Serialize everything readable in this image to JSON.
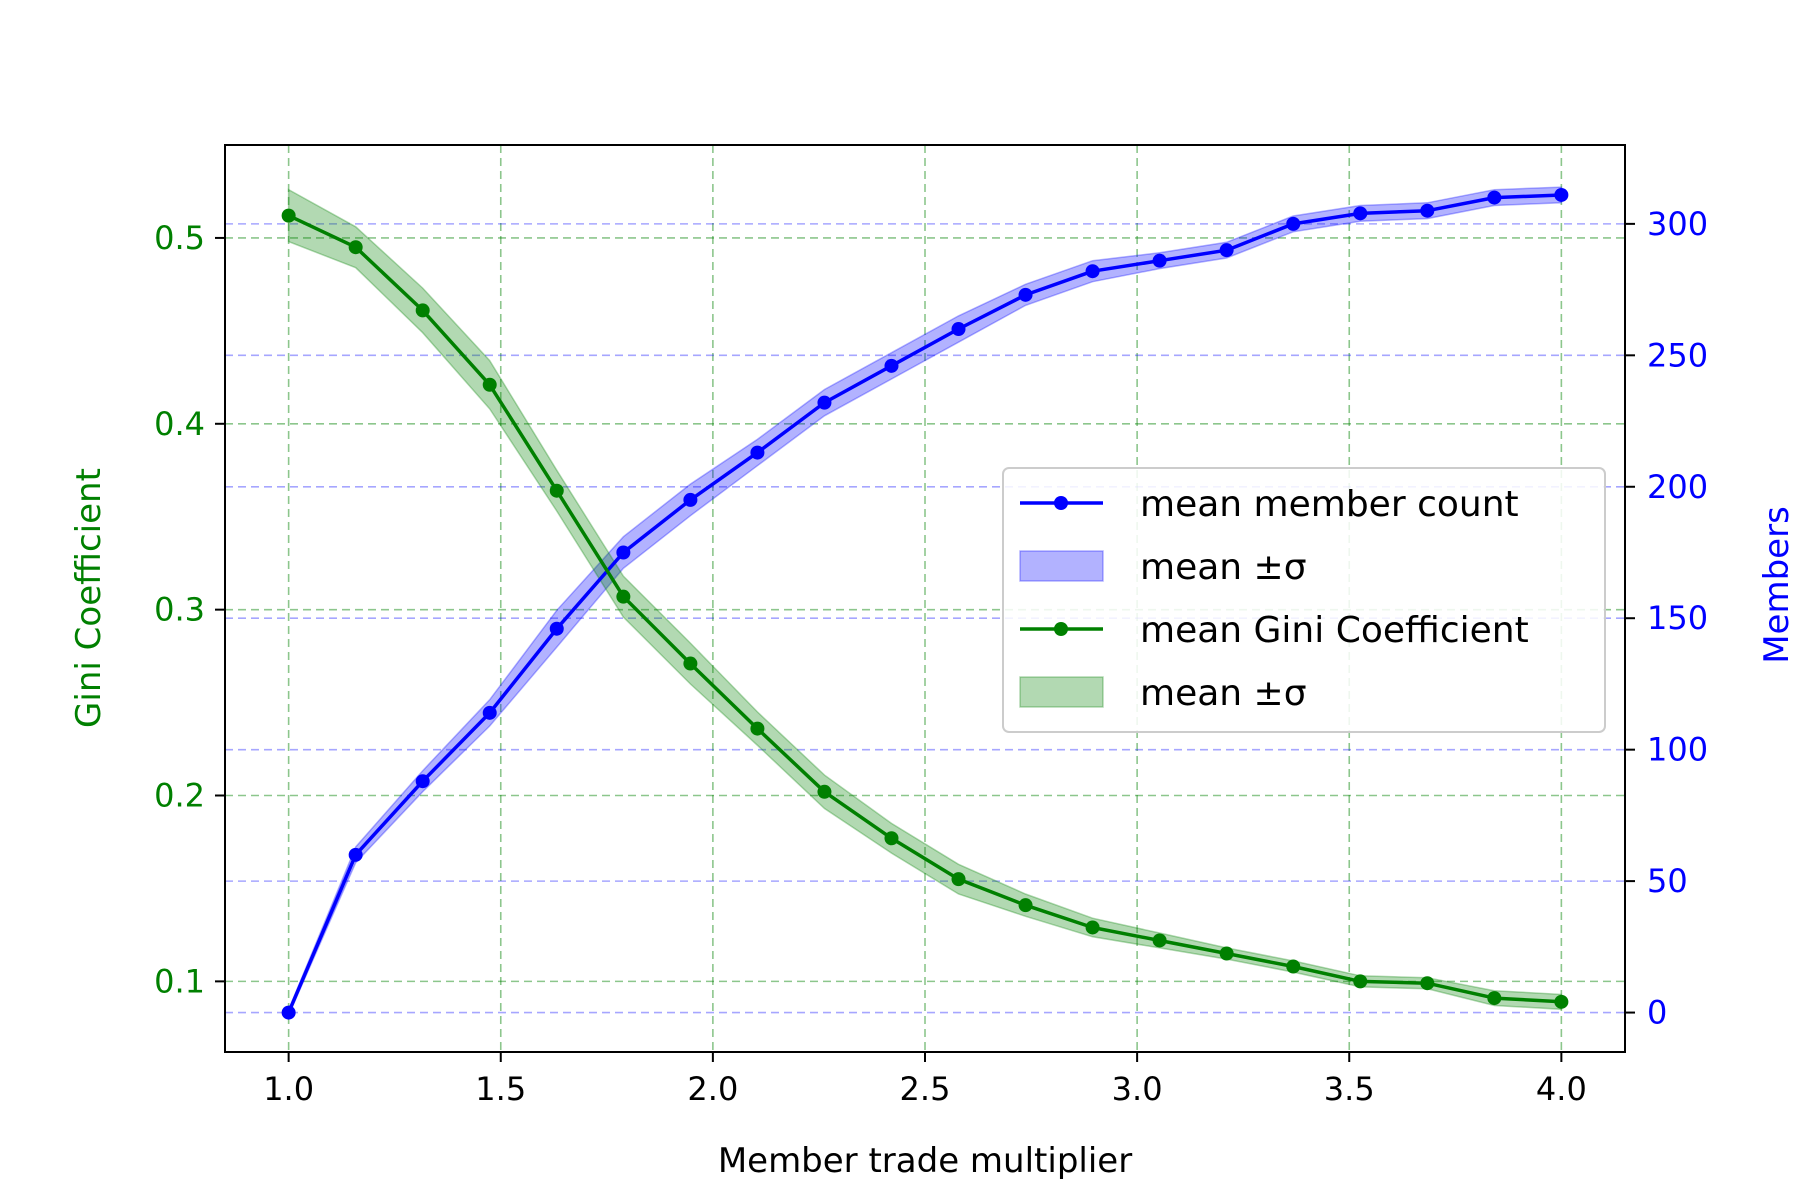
{
  "chart_data": {
    "type": "line",
    "title": "",
    "xlabel": "Member trade multiplier",
    "ylabel_left": "Gini Coefficient",
    "ylabel_right": "Members",
    "xlim": [
      0.85,
      4.15
    ],
    "ylim_left": [
      0.062,
      0.55
    ],
    "ylim_right": [
      -15,
      330
    ],
    "x_ticks": [
      1.0,
      1.5,
      2.0,
      2.5,
      3.0,
      3.5,
      4.0
    ],
    "x_tick_labels": [
      "1.0",
      "1.5",
      "2.0",
      "2.5",
      "3.0",
      "3.5",
      "4.0"
    ],
    "y_left_ticks": [
      0.1,
      0.2,
      0.3,
      0.4,
      0.5
    ],
    "y_left_tick_labels": [
      "0.1",
      "0.2",
      "0.3",
      "0.4",
      "0.5"
    ],
    "y_right_ticks": [
      0,
      50,
      100,
      150,
      200,
      250,
      300
    ],
    "y_right_tick_labels": [
      "0",
      "50",
      "100",
      "150",
      "200",
      "250",
      "300"
    ],
    "grid": true,
    "legend_position": "center-right",
    "x": [
      1.0,
      1.158,
      1.316,
      1.474,
      1.632,
      1.789,
      1.947,
      2.105,
      2.263,
      2.421,
      2.579,
      2.737,
      2.895,
      3.053,
      3.211,
      3.368,
      3.526,
      3.684,
      3.842,
      4.0
    ],
    "series": [
      {
        "name": "mean member count",
        "axis": "right",
        "color": "#0000ff",
        "values": [
          0,
          60,
          88,
          114,
          146,
          175,
          195,
          213,
          232,
          246,
          260,
          273,
          282,
          286,
          290,
          300,
          304,
          305,
          310,
          311
        ],
        "std": [
          1,
          3,
          4,
          5,
          7,
          6,
          6,
          5,
          5,
          5,
          5,
          4,
          4,
          3,
          3,
          3,
          3,
          3,
          3,
          3
        ],
        "band_label": "mean ±σ"
      },
      {
        "name": "mean Gini Coefficient",
        "axis": "left",
        "color": "#008000",
        "values": [
          0.512,
          0.495,
          0.461,
          0.421,
          0.364,
          0.307,
          0.271,
          0.236,
          0.202,
          0.177,
          0.155,
          0.141,
          0.129,
          0.122,
          0.115,
          0.108,
          0.1,
          0.099,
          0.091,
          0.089
        ],
        "std": [
          0.014,
          0.011,
          0.012,
          0.013,
          0.011,
          0.011,
          0.011,
          0.009,
          0.009,
          0.008,
          0.008,
          0.006,
          0.005,
          0.004,
          0.003,
          0.003,
          0.003,
          0.003,
          0.004,
          0.004
        ],
        "band_label": "mean ±σ"
      }
    ],
    "legend": [
      {
        "label": "mean member count",
        "kind": "line",
        "color": "#0000ff"
      },
      {
        "label": "mean ±σ",
        "kind": "band",
        "color": "#0000ff"
      },
      {
        "label": "mean Gini Coefficient",
        "kind": "line",
        "color": "#008000"
      },
      {
        "label": "mean ±σ",
        "kind": "band",
        "color": "#008000"
      }
    ]
  }
}
